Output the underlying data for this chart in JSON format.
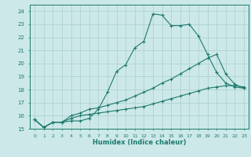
{
  "xlabel": "Humidex (Indice chaleur)",
  "background_color": "#cce8e8",
  "grid_color": "#aacfcf",
  "line_color": "#1e7a6e",
  "xlim": [
    -0.5,
    23.5
  ],
  "ylim": [
    15,
    24.5
  ],
  "yticks": [
    15,
    16,
    17,
    18,
    19,
    20,
    21,
    22,
    23,
    24
  ],
  "xticks": [
    0,
    1,
    2,
    3,
    4,
    5,
    6,
    7,
    8,
    9,
    10,
    11,
    12,
    13,
    14,
    15,
    16,
    17,
    18,
    19,
    20,
    21,
    22,
    23
  ],
  "series": [
    {
      "x": [
        0,
        1,
        2,
        3,
        4,
        5,
        6,
        7,
        8,
        9,
        10,
        11,
        12,
        13,
        14,
        15,
        16,
        17,
        18,
        19,
        20,
        21,
        22,
        23
      ],
      "y": [
        15.7,
        15.1,
        15.5,
        15.5,
        15.6,
        15.6,
        15.8,
        16.5,
        17.8,
        19.4,
        19.9,
        21.2,
        21.7,
        23.8,
        23.7,
        22.9,
        22.9,
        23.0,
        22.1,
        20.7,
        19.3,
        18.5,
        18.2,
        18.1
      ]
    },
    {
      "x": [
        0,
        1,
        2,
        3,
        4,
        5,
        6,
        7,
        8,
        9,
        10,
        11,
        12,
        13,
        14,
        15,
        16,
        17,
        18,
        19,
        20,
        21,
        22,
        23
      ],
      "y": [
        15.7,
        15.1,
        15.5,
        15.5,
        16.0,
        16.2,
        16.5,
        16.6,
        16.8,
        17.0,
        17.2,
        17.5,
        17.8,
        18.1,
        18.5,
        18.8,
        19.2,
        19.6,
        20.0,
        20.4,
        20.7,
        19.2,
        18.4,
        18.1
      ]
    },
    {
      "x": [
        0,
        1,
        2,
        3,
        4,
        5,
        6,
        7,
        8,
        9,
        10,
        11,
        12,
        13,
        14,
        15,
        16,
        17,
        18,
        19,
        20,
        21,
        22,
        23
      ],
      "y": [
        15.7,
        15.1,
        15.5,
        15.5,
        15.8,
        16.0,
        16.1,
        16.2,
        16.3,
        16.4,
        16.5,
        16.6,
        16.7,
        16.9,
        17.1,
        17.3,
        17.5,
        17.7,
        17.9,
        18.1,
        18.2,
        18.3,
        18.3,
        18.2
      ]
    }
  ]
}
